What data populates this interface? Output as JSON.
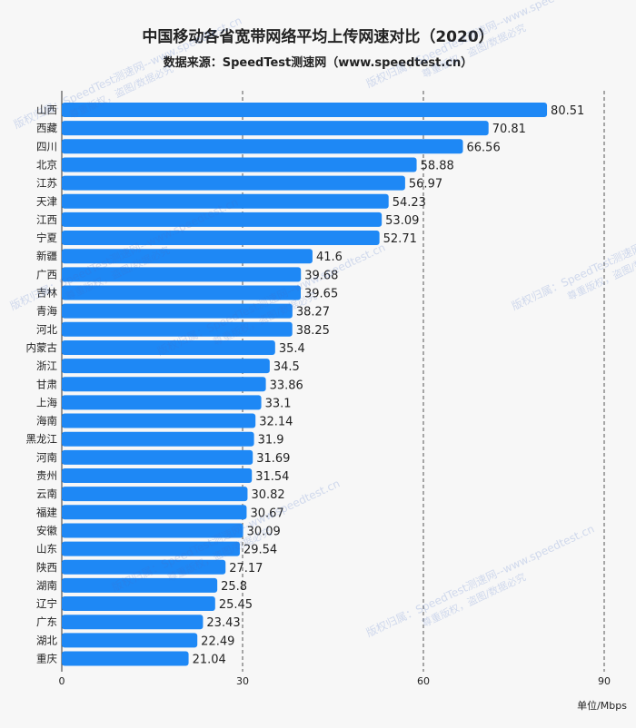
{
  "chart_data": {
    "type": "bar",
    "orientation": "horizontal",
    "title": "中国移动各省宽带网络平均上传网速对比（2020）",
    "subtitle": "数据来源：SpeedTest测速网（www.speedtest.cn）",
    "unit_label": "单位/Mbps",
    "categories": [
      "山西",
      "西藏",
      "四川",
      "北京",
      "江苏",
      "天津",
      "江西",
      "宁夏",
      "新疆",
      "广西",
      "吉林",
      "青海",
      "河北",
      "内蒙古",
      "浙江",
      "甘肃",
      "上海",
      "海南",
      "黑龙江",
      "河南",
      "贵州",
      "云南",
      "福建",
      "安徽",
      "山东",
      "陕西",
      "湖南",
      "辽宁",
      "广东",
      "湖北",
      "重庆"
    ],
    "values": [
      80.51,
      70.81,
      66.56,
      58.88,
      56.97,
      54.23,
      53.09,
      52.71,
      41.6,
      39.68,
      39.65,
      38.27,
      38.25,
      35.4,
      34.5,
      33.86,
      33.1,
      32.14,
      31.9,
      31.69,
      31.54,
      30.82,
      30.67,
      30.09,
      29.54,
      27.17,
      25.8,
      25.45,
      23.43,
      22.49,
      21.04
    ],
    "value_labels": [
      "80.51",
      "70.81",
      "66.56",
      "58.88",
      "56.97",
      "54.23",
      "53.09",
      "52.71",
      "41.6",
      "39.68",
      "39.65",
      "38.27",
      "38.25",
      "35.4",
      "34.5",
      "33.86",
      "33.1",
      "32.14",
      "31.9",
      "31.69",
      "31.54",
      "30.82",
      "30.67",
      "30.09",
      "29.54",
      "27.17",
      "25.8",
      "25.45",
      "23.43",
      "22.49",
      "21.04"
    ],
    "xlim": [
      0,
      90
    ],
    "xticks": [
      "0",
      "30",
      "60",
      "90"
    ],
    "grid": "vertical-dashed",
    "bar_color": "#1e88f5"
  },
  "watermarks": [
    {
      "line1": "版权归属：SpeedTest测速网--www.speedtest.cn",
      "line2": "尊重版权，盗图/数据必究"
    },
    {
      "line1": "版权归属：SpeedTest测速网--www.speedtest.cn",
      "line2": "尊重版权，盗图/数据必究"
    },
    {
      "line1": "版权归属：SpeedTest测速网--www.speedtest.cn",
      "line2": "尊重版权，盗图/数据必究"
    },
    {
      "line1": "版权归属：SpeedTest测速网--www.speedtest.cn",
      "line2": "尊重版权，盗图/数据必究"
    },
    {
      "line1": "版权归属：SpeedTest测速网--www.speedtest.cn",
      "line2": "尊重版权，盗图/数据必究"
    },
    {
      "line1": "版权归属：SpeedTest测速网--www.speedtest.cn",
      "line2": "尊重版权，盗图/数据必究"
    },
    {
      "line1": "版权归属：SpeedTest测速网--www.speedtest.cn",
      "line2": "尊重版权，盗图/数据必究"
    }
  ]
}
